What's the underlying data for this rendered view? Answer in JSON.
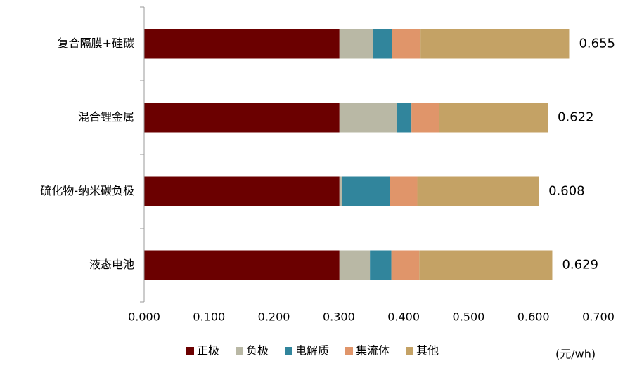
{
  "chart_data": {
    "type": "stacked-barh",
    "categories": [
      "复合隔膜+硅碳",
      "混合锂金属",
      "硫化物-纳米碳负极",
      "液态电池"
    ],
    "series": [
      {
        "name": "正极",
        "color": "#6b0000",
        "values": [
          0.301,
          0.301,
          0.301,
          0.301
        ]
      },
      {
        "name": "负极",
        "color": "#b9b8a5",
        "values": [
          0.052,
          0.088,
          0.004,
          0.047
        ]
      },
      {
        "name": "电解质",
        "color": "#31859c",
        "values": [
          0.029,
          0.023,
          0.074,
          0.033
        ]
      },
      {
        "name": "集流体",
        "color": "#e0956a",
        "values": [
          0.044,
          0.043,
          0.042,
          0.043
        ]
      },
      {
        "name": "其他",
        "color": "#c4a265",
        "values": [
          0.229,
          0.167,
          0.187,
          0.205
        ]
      }
    ],
    "totals": [
      0.655,
      0.622,
      0.608,
      0.629
    ],
    "xlim": [
      0,
      0.7
    ],
    "xticks": [
      {
        "value": 0,
        "label": "0.000"
      },
      {
        "value": 0.1,
        "label": "0.100"
      },
      {
        "value": 0.2,
        "label": "0.200"
      },
      {
        "value": 0.3,
        "label": "0.300"
      },
      {
        "value": 0.4,
        "label": "0.400"
      },
      {
        "value": 0.5,
        "label": "0.500"
      },
      {
        "value": 0.6,
        "label": "0.600"
      },
      {
        "value": 0.7,
        "label": "0.700"
      }
    ],
    "x_label": "(元/wh)",
    "legend": "bottom"
  }
}
